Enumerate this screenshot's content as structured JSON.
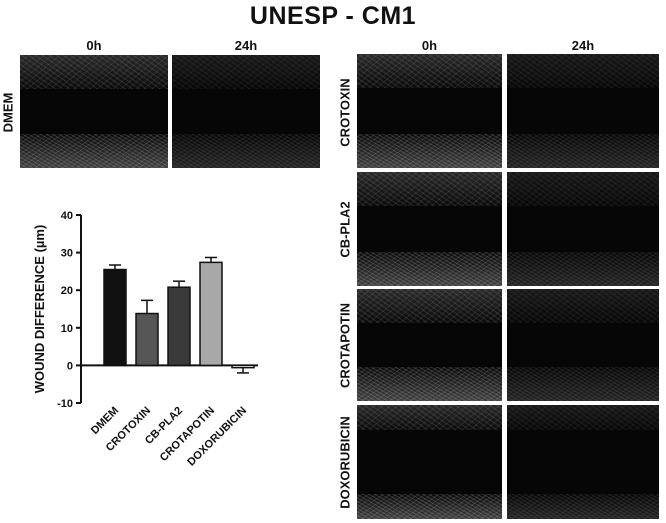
{
  "title": "UNESP - CM1",
  "columns": [
    "0h",
    "24h"
  ],
  "rows_left": [
    "DMEM"
  ],
  "rows_right": [
    "CROTOXIN",
    "CB-PLA2",
    "CROTAPOTIN",
    "DOXORUBICIN"
  ],
  "colors": {
    "dmem_bar": "#111111",
    "crotoxin_bar": "#555555",
    "cbpla2_bar": "#3a3a3a",
    "crotapotin_bar": "#a8a8a8",
    "doxorubicin_bar": "#ffffff"
  },
  "chart_data": {
    "type": "bar",
    "categories": [
      "DMEM",
      "CROTOXIN",
      "CB-PLA2",
      "CROTAPOTIN",
      "DOXORUBICIN"
    ],
    "values": [
      25.5,
      13.8,
      20.8,
      27.4,
      -0.6
    ],
    "errors": [
      1.2,
      3.5,
      1.6,
      1.3,
      1.4
    ],
    "title": "",
    "xlabel": "",
    "ylabel": "WOUND DIFFERENCE (µm)",
    "ylim": [
      -10,
      40
    ],
    "yticks": [
      "-10",
      "0",
      "10",
      "20",
      "30",
      "40"
    ],
    "grid": false
  }
}
